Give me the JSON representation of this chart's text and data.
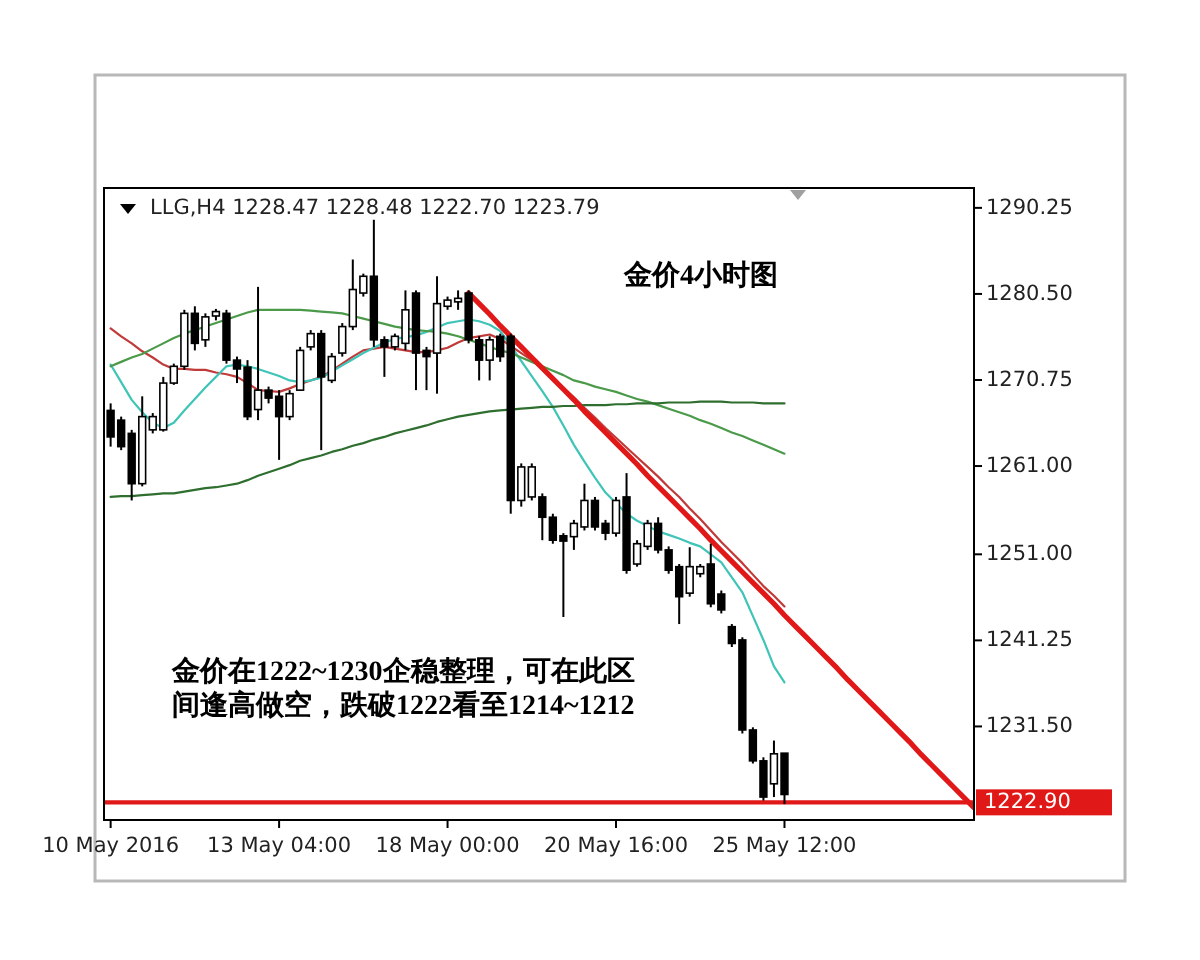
{
  "chart_data": {
    "type": "candlestick",
    "title": "LLG,H4 1228.47 1228.48 1222.70 1223.79",
    "categories": [
      "10 May 2016",
      null,
      null,
      null,
      null,
      null,
      null,
      null,
      null,
      null,
      null,
      null,
      null,
      null,
      null,
      null,
      "13 May 04:00",
      null,
      null,
      null,
      null,
      null,
      null,
      null,
      null,
      null,
      null,
      null,
      null,
      null,
      null,
      null,
      "18 May 00:00",
      null,
      null,
      null,
      null,
      null,
      null,
      null,
      null,
      null,
      null,
      null,
      null,
      null,
      null,
      null,
      "20 May 16:00",
      null,
      null,
      null,
      null,
      null,
      null,
      null,
      null,
      null,
      null,
      null,
      null,
      null,
      null,
      null,
      "25 May 12:00",
      null,
      null,
      null,
      null,
      null,
      null,
      null,
      null,
      null,
      null,
      null,
      null,
      null,
      null,
      null,
      null,
      null,
      null
    ],
    "ohlc": [
      [
        1267.3,
        1268.1,
        1263.2,
        1264.3
      ],
      [
        1266.2,
        1266.6,
        1262.8,
        1263.2
      ],
      [
        1264.7,
        1265.1,
        1257.1,
        1259.0
      ],
      [
        1259.0,
        1268.9,
        1258.7,
        1266.6
      ],
      [
        1265.1,
        1267.0,
        1264.7,
        1266.6
      ],
      [
        1265.1,
        1271.1,
        1264.9,
        1270.4
      ],
      [
        1270.4,
        1272.6,
        1270.2,
        1272.3
      ],
      [
        1272.3,
        1278.7,
        1271.9,
        1278.3
      ],
      [
        1278.3,
        1279.1,
        1274.1,
        1274.9
      ],
      [
        1275.3,
        1278.3,
        1274.5,
        1277.9
      ],
      [
        1278.0,
        1278.8,
        1277.5,
        1278.5
      ],
      [
        1278.3,
        1278.7,
        1272.6,
        1273.0
      ],
      [
        1273.0,
        1273.4,
        1270.4,
        1272.0
      ],
      [
        1272.2,
        1273.0,
        1266.2,
        1266.6
      ],
      [
        1267.4,
        1281.3,
        1266.2,
        1269.6
      ],
      [
        1269.6,
        1270.0,
        1268.1,
        1268.7
      ],
      [
        1268.9,
        1269.6,
        1261.7,
        1266.6
      ],
      [
        1266.6,
        1269.6,
        1266.2,
        1269.2
      ],
      [
        1269.6,
        1274.5,
        1269.5,
        1274.1
      ],
      [
        1274.5,
        1276.4,
        1274.1,
        1276.0
      ],
      [
        1276.0,
        1276.4,
        1262.8,
        1271.1
      ],
      [
        1270.7,
        1273.8,
        1270.4,
        1273.4
      ],
      [
        1273.8,
        1277.2,
        1273.4,
        1276.8
      ],
      [
        1276.8,
        1284.4,
        1276.4,
        1281.0
      ],
      [
        1280.6,
        1282.8,
        1280.2,
        1282.5
      ],
      [
        1282.5,
        1288.9,
        1274.5,
        1275.3
      ],
      [
        1275.3,
        1275.7,
        1271.1,
        1274.5
      ],
      [
        1274.5,
        1276.0,
        1274.1,
        1275.7
      ],
      [
        1274.9,
        1280.9,
        1274.1,
        1278.7
      ],
      [
        1280.6,
        1280.9,
        1269.6,
        1273.8
      ],
      [
        1274.1,
        1274.5,
        1269.6,
        1273.4
      ],
      [
        1273.8,
        1282.5,
        1269.2,
        1279.4
      ],
      [
        1279.1,
        1280.2,
        1278.7,
        1279.8
      ],
      [
        1279.6,
        1280.9,
        1278.7,
        1280.0
      ],
      [
        1280.6,
        1280.9,
        1274.9,
        1275.3
      ],
      [
        1275.3,
        1275.7,
        1270.7,
        1273.0
      ],
      [
        1273.0,
        1275.7,
        1270.7,
        1275.3
      ],
      [
        1275.7,
        1276.0,
        1272.8,
        1273.4
      ],
      [
        1275.7,
        1276.0,
        1255.6,
        1257.1
      ],
      [
        1257.1,
        1261.3,
        1256.4,
        1260.9
      ],
      [
        1257.5,
        1261.3,
        1257.1,
        1260.9
      ],
      [
        1257.5,
        1257.9,
        1252.6,
        1255.2
      ],
      [
        1255.2,
        1255.6,
        1252.2,
        1252.6
      ],
      [
        1253.1,
        1253.4,
        1243.9,
        1252.5
      ],
      [
        1253.0,
        1254.9,
        1251.5,
        1254.5
      ],
      [
        1254.1,
        1259.0,
        1253.7,
        1257.1
      ],
      [
        1257.1,
        1257.5,
        1253.7,
        1254.1
      ],
      [
        1254.5,
        1254.9,
        1252.6,
        1253.4
      ],
      [
        1253.4,
        1257.5,
        1253.0,
        1257.1
      ],
      [
        1257.5,
        1260.2,
        1248.8,
        1249.2
      ],
      [
        1249.9,
        1252.6,
        1249.6,
        1252.2
      ],
      [
        1251.9,
        1254.9,
        1251.5,
        1254.5
      ],
      [
        1254.5,
        1255.2,
        1251.1,
        1251.5
      ],
      [
        1251.5,
        1251.9,
        1248.8,
        1249.2
      ],
      [
        1249.6,
        1249.9,
        1243.1,
        1246.2
      ],
      [
        1246.6,
        1251.8,
        1246.2,
        1249.6
      ],
      [
        1248.8,
        1249.9,
        1248.4,
        1249.6
      ],
      [
        1249.9,
        1252.2,
        1245.0,
        1245.4
      ],
      [
        1246.5,
        1246.9,
        1244.3,
        1244.7
      ],
      [
        1242.8,
        1243.1,
        1240.5,
        1240.9
      ],
      [
        1241.3,
        1241.6,
        1230.7,
        1231.1
      ],
      [
        1231.1,
        1231.4,
        1227.3,
        1227.6
      ],
      [
        1227.6,
        1228.0,
        1223.1,
        1223.5
      ],
      [
        1225.0,
        1229.9,
        1223.5,
        1228.4
      ],
      [
        1228.47,
        1228.48,
        1222.7,
        1223.79
      ],
      null,
      null,
      null,
      null,
      null,
      null,
      null,
      null,
      null,
      null,
      null,
      null,
      null,
      null,
      null,
      null,
      null,
      null
    ],
    "series": [
      {
        "type": "line",
        "color": "#c03a3a",
        "values": [
          1276.6,
          1275.7,
          1274.9,
          1274.0,
          1273.3,
          1272.5,
          1272.0,
          1272.0,
          1271.9,
          1271.9,
          1271.6,
          1271.4,
          1271.1,
          1270.4,
          1269.6,
          1269.5,
          1269.4,
          1269.8,
          1270.3,
          1270.7,
          1271.1,
          1271.8,
          1272.6,
          1273.4,
          1274.1,
          1274.3,
          1274.5,
          1274.3,
          1274.1,
          1273.9,
          1273.9,
          1274.1,
          1274.4,
          1275.0,
          1275.5,
          1275.7,
          1275.9,
          1275.4,
          1274.6,
          1273.8,
          1273.0,
          1272.0,
          1271.0,
          1269.9,
          1268.8,
          1267.6,
          1266.5,
          1265.3,
          1264.2,
          1263.1,
          1262.0,
          1260.9,
          1259.8,
          1258.6,
          1257.5,
          1256.2,
          1255.0,
          1253.7,
          1252.4,
          1251.2,
          1250.0,
          1248.7,
          1247.4,
          1246.3,
          1245.1,
          null,
          null,
          null,
          null,
          null,
          null,
          null,
          null,
          null,
          null,
          null,
          null,
          null,
          null,
          null,
          null,
          null,
          null
        ]
      },
      {
        "type": "line",
        "color": "#3fc4b8",
        "values": [
          1272.5,
          1270.5,
          1268.5,
          1267.1,
          1265.9,
          1265.3,
          1265.9,
          1267.3,
          1268.6,
          1269.9,
          1271.1,
          1272.3,
          1272.5,
          1272.3,
          1272.0,
          1271.6,
          1271.2,
          1270.7,
          1270.5,
          1270.7,
          1271.0,
          1271.7,
          1272.4,
          1273.1,
          1273.8,
          1274.4,
          1275.0,
          1275.4,
          1275.6,
          1275.8,
          1276.2,
          1276.7,
          1277.2,
          1277.4,
          1277.6,
          1277.4,
          1277.0,
          1276.3,
          1274.6,
          1272.9,
          1271.2,
          1269.5,
          1267.7,
          1265.6,
          1263.4,
          1261.5,
          1259.7,
          1258.0,
          1256.8,
          1255.6,
          1254.8,
          1254.2,
          1253.6,
          1253.2,
          1252.8,
          1252.3,
          1251.9,
          1251.0,
          1250.1,
          1248.4,
          1246.7,
          1244.0,
          1241.3,
          1238.3,
          1236.5,
          null,
          null,
          null,
          null,
          null,
          null,
          null,
          null,
          null,
          null,
          null,
          null,
          null,
          null,
          null,
          null,
          null,
          null
        ]
      },
      {
        "type": "line",
        "color": "#4a9a4a",
        "values": [
          1272.3,
          1272.8,
          1273.3,
          1273.7,
          1274.3,
          1274.9,
          1275.5,
          1276.0,
          1276.4,
          1276.8,
          1277.2,
          1277.6,
          1278.0,
          1278.4,
          1278.7,
          1278.7,
          1278.7,
          1278.7,
          1278.7,
          1278.6,
          1278.5,
          1278.4,
          1278.3,
          1278.0,
          1277.7,
          1277.4,
          1277.1,
          1276.8,
          1276.6,
          1276.4,
          1276.3,
          1276.2,
          1276.0,
          1275.7,
          1275.3,
          1274.9,
          1274.5,
          1274.1,
          1273.8,
          1273.3,
          1272.8,
          1272.3,
          1271.8,
          1271.3,
          1270.7,
          1270.4,
          1270.0,
          1269.7,
          1269.4,
          1269.0,
          1268.6,
          1268.3,
          1267.9,
          1267.5,
          1267.1,
          1266.7,
          1266.2,
          1265.8,
          1265.3,
          1264.8,
          1264.4,
          1263.9,
          1263.4,
          1262.9,
          1262.4,
          null,
          null,
          null,
          null,
          null,
          null,
          null,
          null,
          null,
          null,
          null,
          null,
          null,
          null,
          null,
          null,
          null,
          null
        ]
      },
      {
        "type": "line",
        "color": "#2e6e2e",
        "values": [
          1257.5,
          1257.6,
          1257.6,
          1257.7,
          1257.8,
          1257.9,
          1257.9,
          1258.1,
          1258.3,
          1258.5,
          1258.6,
          1258.8,
          1259.0,
          1259.4,
          1259.9,
          1260.3,
          1260.7,
          1261.1,
          1261.6,
          1261.9,
          1262.2,
          1262.6,
          1262.9,
          1263.3,
          1263.6,
          1264.0,
          1264.3,
          1264.7,
          1265.0,
          1265.3,
          1265.6,
          1266.0,
          1266.3,
          1266.6,
          1266.8,
          1267.0,
          1267.2,
          1267.3,
          1267.4,
          1267.5,
          1267.6,
          1267.7,
          1267.7,
          1267.8,
          1267.8,
          1267.9,
          1267.9,
          1267.9,
          1268.0,
          1268.0,
          1268.1,
          1268.1,
          1268.1,
          1268.2,
          1268.2,
          1268.2,
          1268.3,
          1268.3,
          1268.3,
          1268.2,
          1268.2,
          1268.2,
          1268.1,
          1268.1,
          1268.1,
          null,
          null,
          null,
          null,
          null,
          null,
          null,
          null,
          null,
          null,
          null,
          null,
          null,
          null,
          null,
          null,
          null,
          null
        ]
      },
      {
        "type": "line",
        "color": "#e01818",
        "values": [
          null,
          null,
          null,
          null,
          null,
          null,
          null,
          null,
          null,
          null,
          null,
          null,
          null,
          null,
          null,
          null,
          null,
          null,
          null,
          null,
          null,
          null,
          null,
          null,
          null,
          null,
          null,
          null,
          null,
          null,
          null,
          null,
          null,
          null,
          1280.6,
          1279.4,
          1278.2,
          1276.9,
          1275.7,
          1274.5,
          1273.3,
          1272.1,
          1270.9,
          1269.7,
          1268.5,
          1267.2,
          1266.0,
          1264.8,
          1263.6,
          1262.4,
          1261.2,
          1259.9,
          1258.7,
          1257.5,
          1256.3,
          1255.1,
          1253.9,
          1252.6,
          1251.4,
          1250.2,
          1249.0,
          1247.8,
          1246.6,
          1245.4,
          1244.1,
          1242.9,
          1241.7,
          1240.5,
          1239.3,
          1238.1,
          1236.8,
          1235.6,
          1234.4,
          1233.2,
          1232.0,
          1230.8,
          1229.6,
          1228.3,
          1227.1,
          1225.9,
          1224.7,
          1223.5,
          1222.3
        ]
      }
    ],
    "ylim": [
      1220.9,
      1292.5
    ],
    "yticks": [
      1290.25,
      {
        "value": 1280.5,
        "label": "1280.50"
      },
      1270.75,
      {
        "value": 1261,
        "label": "1261.00"
      },
      {
        "value": 1251,
        "label": "1251.00"
      },
      1241.25,
      {
        "value": 1231.5,
        "label": "1231.50"
      }
    ],
    "ref_lines": [
      {
        "axis": "y",
        "value": 1222.9,
        "label": "1222.90",
        "color": "#e01818"
      }
    ],
    "annotations": [
      "金价4小时图",
      "金价在1222~1230企稳整理，可在此区间逢高做空，跌破1222看至1214~1212"
    ]
  }
}
